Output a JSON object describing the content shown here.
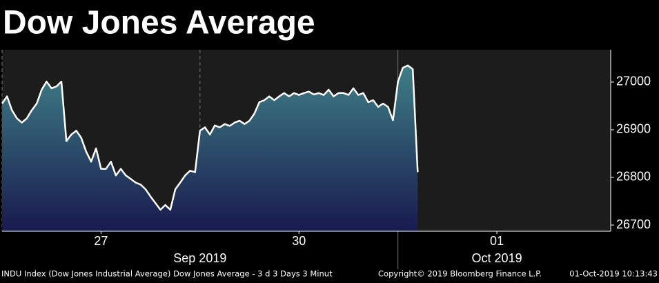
{
  "chart_data": {
    "type": "area-line",
    "title": "Dow Jones Average",
    "values": [
      26955,
      26970,
      26941,
      26924,
      26915,
      26924,
      26941,
      26955,
      26984,
      27001,
      26987,
      26991,
      27001,
      26876,
      26890,
      26898,
      26883,
      26854,
      26833,
      26861,
      26818,
      26818,
      26833,
      26804,
      26818,
      26804,
      26797,
      26789,
      26785,
      26775,
      26760,
      26746,
      26732,
      26742,
      26732,
      26775,
      26789,
      26804,
      26814,
      26811,
      26898,
      26905,
      26890,
      26909,
      26905,
      26912,
      26908,
      26915,
      26919,
      26912,
      26919,
      26934,
      26958,
      26962,
      26970,
      26962,
      26970,
      26977,
      26970,
      26977,
      26973,
      26977,
      26980,
      26974,
      26977,
      26973,
      26984,
      26970,
      26977,
      26977,
      26973,
      26987,
      26973,
      26977,
      26958,
      26962,
      26948,
      26955,
      26948,
      26920,
      27001,
      27030,
      27035,
      27027,
      26811
    ],
    "color": "#ffffff",
    "xlim": [
      0,
      123
    ],
    "xticks": [
      {
        "value": 20,
        "label": "27"
      },
      {
        "value": 60,
        "label": "30"
      },
      {
        "value": 100,
        "label": "01"
      }
    ],
    "x_month_labels": [
      {
        "value": 40,
        "label": "Sep 2019"
      },
      {
        "value": 100,
        "label": "Oct 2019"
      }
    ],
    "ylim": [
      26687,
      27068
    ],
    "yticks": [
      26700,
      26800,
      26900,
      27000
    ],
    "footer": [
      "INDU Index (Dow Jones Industrial Average) Dow Jones Average - 3 d 3 Days 3 Minut",
      "Copyright© 2019 Bloomberg Finance L.P.",
      "01-Oct-2019 10:13:43"
    ]
  }
}
